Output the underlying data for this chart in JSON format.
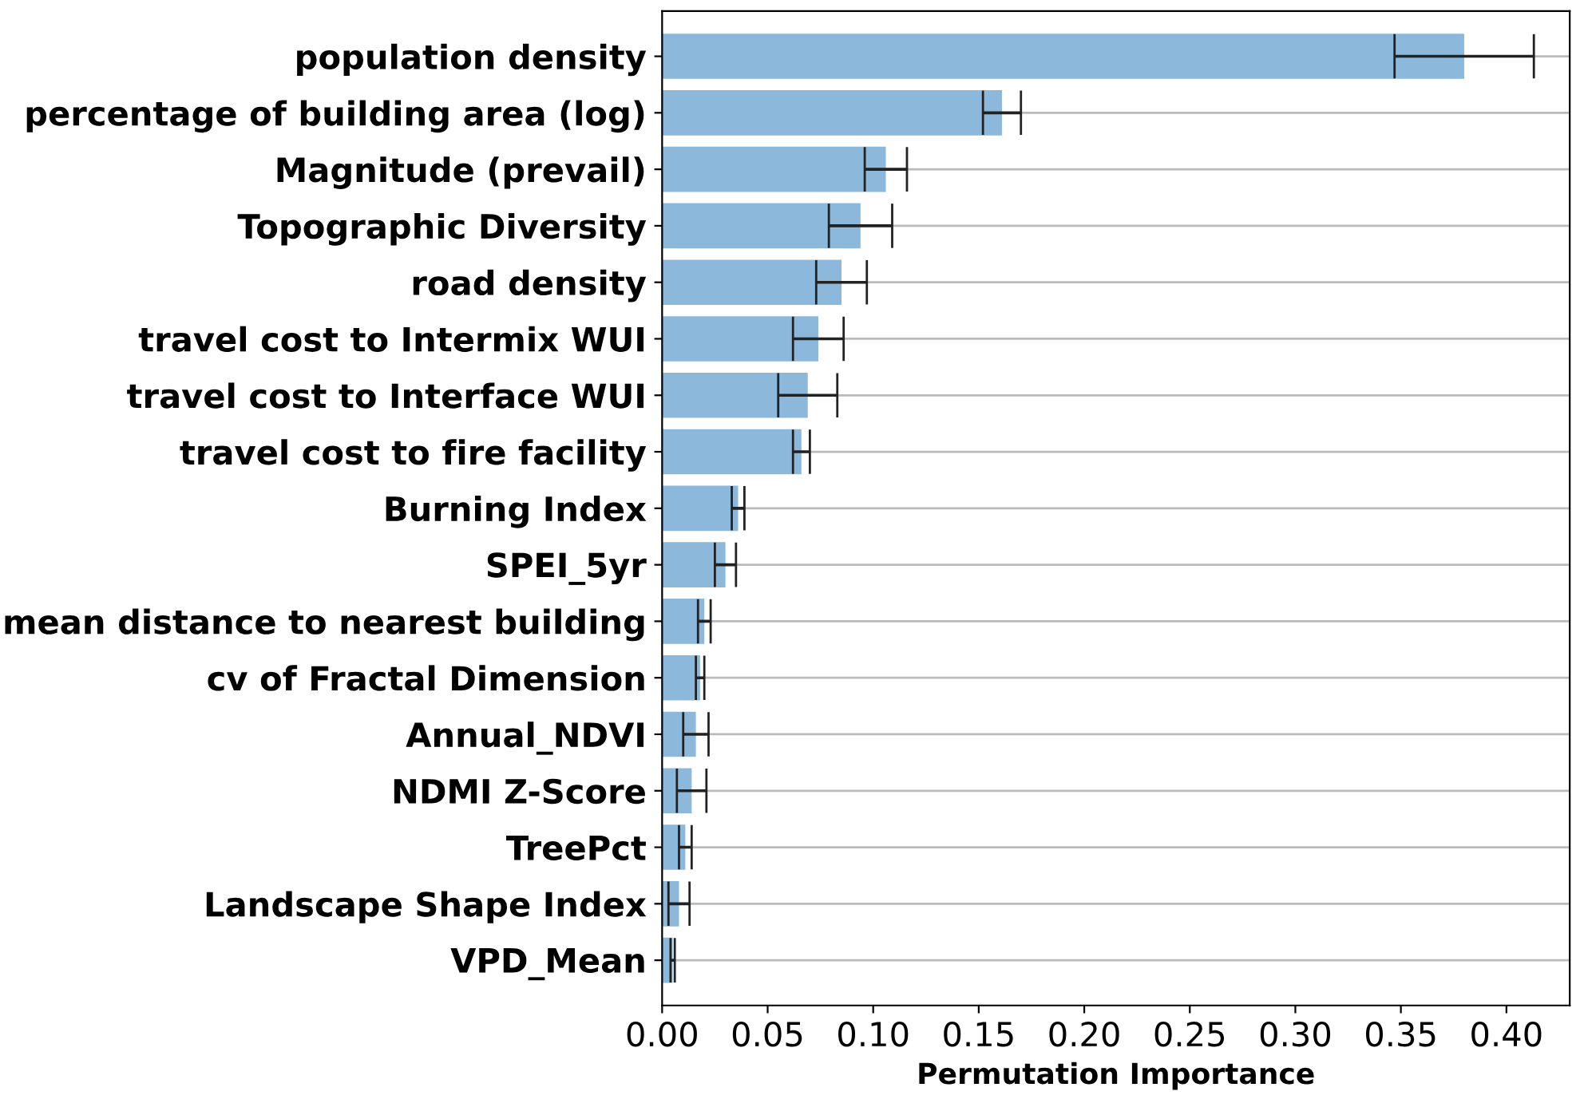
{
  "chart_data": {
    "type": "bar",
    "orientation": "horizontal",
    "xlabel": "Permutation Importance",
    "categories": [
      "population density",
      "percentage of building area (log)",
      "Magnitude (prevail)",
      "Topographic Diversity",
      "road density",
      "travel cost to Intermix WUI",
      "travel cost to Interface WUI",
      "travel cost to fire facility",
      "Burning Index",
      "SPEI_5yr",
      "mean distance to nearest building",
      "cv of Fractal Dimension",
      "Annual_NDVI",
      "NDMI Z-Score",
      "TreePct",
      "Landscape Shape Index",
      "VPD_Mean"
    ],
    "values": [
      0.38,
      0.161,
      0.106,
      0.094,
      0.085,
      0.074,
      0.069,
      0.066,
      0.036,
      0.03,
      0.02,
      0.018,
      0.016,
      0.014,
      0.011,
      0.008,
      0.005
    ],
    "errors": [
      0.033,
      0.009,
      0.01,
      0.015,
      0.012,
      0.012,
      0.014,
      0.004,
      0.003,
      0.005,
      0.003,
      0.002,
      0.006,
      0.007,
      0.003,
      0.005,
      0.001
    ],
    "color": "#8cb8db",
    "xlim": [
      0,
      0.43
    ],
    "xticks": [
      {
        "value": 0,
        "label": "0.00"
      },
      0.05,
      {
        "value": 0.1,
        "label": "0.10"
      },
      0.15,
      {
        "value": 0.2,
        "label": "0.20"
      },
      0.25,
      {
        "value": 0.3,
        "label": "0.30"
      },
      0.35,
      {
        "value": 0.4,
        "label": "0.40"
      }
    ],
    "grid": "y"
  }
}
